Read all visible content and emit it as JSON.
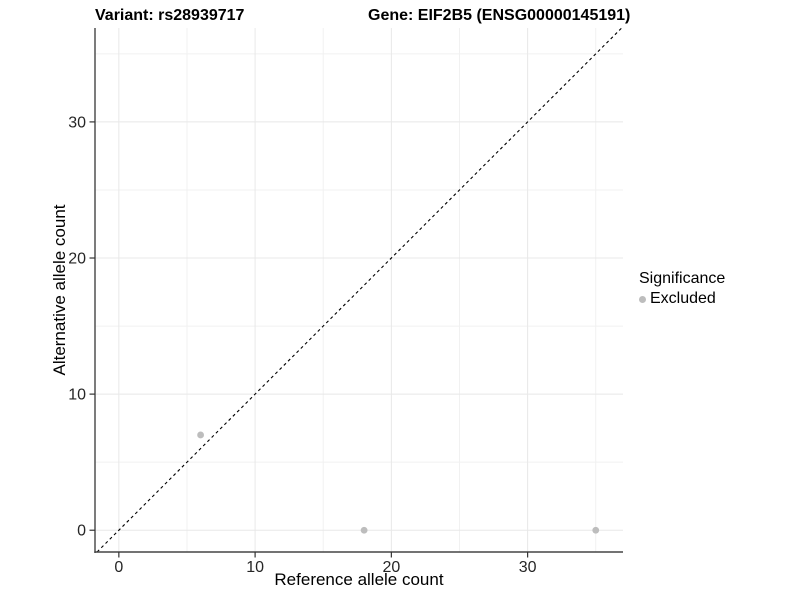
{
  "header": {
    "left_title": "Variant: rs28939717",
    "right_title": "Gene: EIF2B5 (ENSG00000145191)"
  },
  "legend": {
    "title": "Significance",
    "items": [
      {
        "label": "Excluded",
        "color": "#bdbdbd"
      }
    ]
  },
  "chart_data": {
    "type": "scatter",
    "title_left": "Variant: rs28939717",
    "title_right": "Gene: EIF2B5 (ENSG00000145191)",
    "xlabel": "Reference allele count",
    "ylabel": "Alternative allele count",
    "xlim": [
      -1.75,
      37.0
    ],
    "ylim": [
      -1.6,
      36.9
    ],
    "xticks": [
      0,
      10,
      20,
      30
    ],
    "yticks": [
      0,
      10,
      20,
      30
    ],
    "minor_xticks": [
      5,
      15,
      25,
      35
    ],
    "minor_yticks": [
      5,
      15,
      25,
      35
    ],
    "grid": true,
    "legend_position": "right",
    "series": [
      {
        "name": "Excluded",
        "color": "#bdbdbd",
        "marker": "circle",
        "points": [
          {
            "x": 6,
            "y": 7
          },
          {
            "x": 18,
            "y": 0
          },
          {
            "x": 35,
            "y": 0
          }
        ]
      }
    ],
    "reference_line": {
      "kind": "identity",
      "dash": "dashed",
      "color": "#000000"
    }
  },
  "colors": {
    "background": "#ffffff",
    "grid_major": "#e8e8e8",
    "grid_minor": "#f1f1f1",
    "axis_line": "#454545",
    "tick_mark": "#333333",
    "tick_label": "#262626",
    "point": "#bdbdbd"
  }
}
